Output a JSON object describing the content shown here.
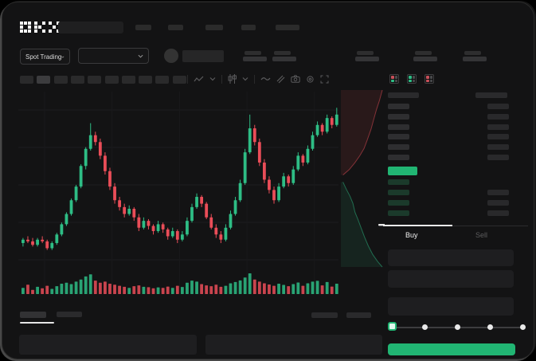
{
  "brand": {
    "logo_text": "OKX"
  },
  "header": {
    "nav_placeholder_count": 5
  },
  "market_bar": {
    "pair_selector_label": "Spot Trading",
    "stat_pair_count": 5
  },
  "chart_toolbar": {
    "interval_count": 10,
    "active_interval_index": 1,
    "icons": [
      "indicator-zigzag-icon",
      "chevron-down-icon",
      "candle-style-icon",
      "chevron-down-icon",
      "line-wave-icon",
      "draw-lines-icon",
      "camera-icon",
      "settings-gear-icon",
      "fullscreen-icon"
    ]
  },
  "chart_data": {
    "type": "candlestick",
    "title": "",
    "price_scale": {
      "min": 0,
      "max": 100
    },
    "grid": {
      "h_lines": 5,
      "v_lines": 5
    },
    "colors": {
      "up": "#2ebd85",
      "down": "#ea4d58"
    },
    "candles": [
      [
        13,
        16,
        11,
        15
      ],
      [
        15,
        17,
        13,
        14
      ],
      [
        14,
        16,
        11,
        12
      ],
      [
        12,
        16,
        11,
        15
      ],
      [
        15,
        17,
        13,
        14
      ],
      [
        14,
        15,
        9,
        10
      ],
      [
        10,
        14,
        9,
        13
      ],
      [
        13,
        19,
        12,
        18
      ],
      [
        18,
        25,
        17,
        24
      ],
      [
        24,
        31,
        23,
        30
      ],
      [
        30,
        39,
        29,
        38
      ],
      [
        38,
        47,
        37,
        46
      ],
      [
        46,
        59,
        45,
        58
      ],
      [
        58,
        69,
        56,
        68
      ],
      [
        68,
        83,
        67,
        76
      ],
      [
        76,
        78,
        70,
        72
      ],
      [
        72,
        74,
        62,
        64
      ],
      [
        64,
        66,
        53,
        55
      ],
      [
        55,
        57,
        44,
        46
      ],
      [
        46,
        48,
        36,
        38
      ],
      [
        38,
        40,
        32,
        34
      ],
      [
        34,
        36,
        28,
        30
      ],
      [
        30,
        35,
        29,
        33
      ],
      [
        33,
        34,
        26,
        28
      ],
      [
        28,
        30,
        20,
        22
      ],
      [
        22,
        28,
        21,
        26
      ],
      [
        26,
        27,
        21,
        23
      ],
      [
        23,
        24,
        18,
        20
      ],
      [
        20,
        26,
        19,
        24
      ],
      [
        24,
        25,
        19,
        21
      ],
      [
        21,
        22,
        15,
        17
      ],
      [
        17,
        22,
        16,
        20
      ],
      [
        20,
        21,
        13,
        15
      ],
      [
        15,
        20,
        14,
        18
      ],
      [
        18,
        28,
        17,
        26
      ],
      [
        26,
        36,
        25,
        34
      ],
      [
        34,
        42,
        33,
        40
      ],
      [
        40,
        41,
        34,
        36
      ],
      [
        36,
        37,
        27,
        28
      ],
      [
        28,
        30,
        21,
        22
      ],
      [
        22,
        24,
        16,
        18
      ],
      [
        18,
        20,
        13,
        15
      ],
      [
        15,
        24,
        14,
        22
      ],
      [
        22,
        32,
        21,
        30
      ],
      [
        30,
        40,
        29,
        38
      ],
      [
        38,
        50,
        37,
        48
      ],
      [
        48,
        68,
        47,
        66
      ],
      [
        66,
        88,
        65,
        80
      ],
      [
        80,
        82,
        70,
        72
      ],
      [
        72,
        74,
        58,
        60
      ],
      [
        60,
        62,
        48,
        50
      ],
      [
        50,
        52,
        42,
        44
      ],
      [
        44,
        46,
        36,
        38
      ],
      [
        38,
        48,
        37,
        46
      ],
      [
        46,
        54,
        45,
        52
      ],
      [
        52,
        53,
        46,
        48
      ],
      [
        48,
        58,
        47,
        56
      ],
      [
        56,
        66,
        55,
        64
      ],
      [
        64,
        65,
        58,
        60
      ],
      [
        60,
        70,
        59,
        68
      ],
      [
        68,
        78,
        67,
        76
      ],
      [
        76,
        84,
        75,
        82
      ],
      [
        82,
        83,
        76,
        78
      ],
      [
        78,
        88,
        77,
        86
      ],
      [
        86,
        87,
        80,
        82
      ],
      [
        82,
        92,
        81,
        88
      ]
    ],
    "volume": [
      30,
      45,
      20,
      35,
      28,
      40,
      25,
      38,
      50,
      55,
      48,
      60,
      70,
      85,
      95,
      65,
      55,
      60,
      50,
      45,
      40,
      35,
      30,
      38,
      42,
      35,
      33,
      28,
      32,
      30,
      36,
      30,
      40,
      34,
      55,
      65,
      60,
      48,
      42,
      38,
      45,
      35,
      40,
      52,
      58,
      66,
      80,
      100,
      70,
      60,
      52,
      46,
      40,
      50,
      44,
      38,
      48,
      56,
      40,
      52,
      60,
      64,
      42,
      58,
      36,
      50
    ],
    "depth_overlay": {
      "asks": [
        [
          1,
          0
        ],
        [
          0.93,
          0.06
        ],
        [
          0.86,
          0.11
        ],
        [
          0.8,
          0.16
        ],
        [
          0.73,
          0.22
        ],
        [
          0.64,
          0.28
        ],
        [
          0.56,
          0.33
        ],
        [
          0.46,
          0.37
        ],
        [
          0.34,
          0.41
        ],
        [
          0.2,
          0.45
        ],
        [
          0.05,
          0.48
        ]
      ],
      "bids": [
        [
          0.05,
          0.52
        ],
        [
          0.13,
          0.56
        ],
        [
          0.22,
          0.6
        ],
        [
          0.29,
          0.64
        ],
        [
          0.34,
          0.69
        ],
        [
          0.41,
          0.73
        ],
        [
          0.49,
          0.78
        ],
        [
          0.57,
          0.83
        ],
        [
          0.66,
          0.88
        ],
        [
          0.77,
          0.93
        ],
        [
          0.89,
          0.97
        ],
        [
          1,
          1
        ]
      ]
    }
  },
  "order_book": {
    "layout_icons": [
      "split-book-icon",
      "bids-only-icon",
      "asks-only-icon"
    ],
    "ask_row_count": 6,
    "bid_row_count": 4,
    "last_price_color": "#21b573"
  },
  "trade_panel": {
    "buy_tab_label": "Buy",
    "sell_tab_label": "Sell",
    "active_tab": "Buy",
    "input_count": 3,
    "slider_stop_count": 5,
    "slider_value_index": 0,
    "submit_button_color": "#21b573"
  },
  "bottom_panel": {
    "tab_count": 2,
    "active_tab_index": 0,
    "link_count": 2,
    "field_count": 2
  },
  "colors": {
    "bg": "#131314",
    "up": "#2ebd85",
    "down": "#ea4d58",
    "accent_green": "#21b573"
  }
}
